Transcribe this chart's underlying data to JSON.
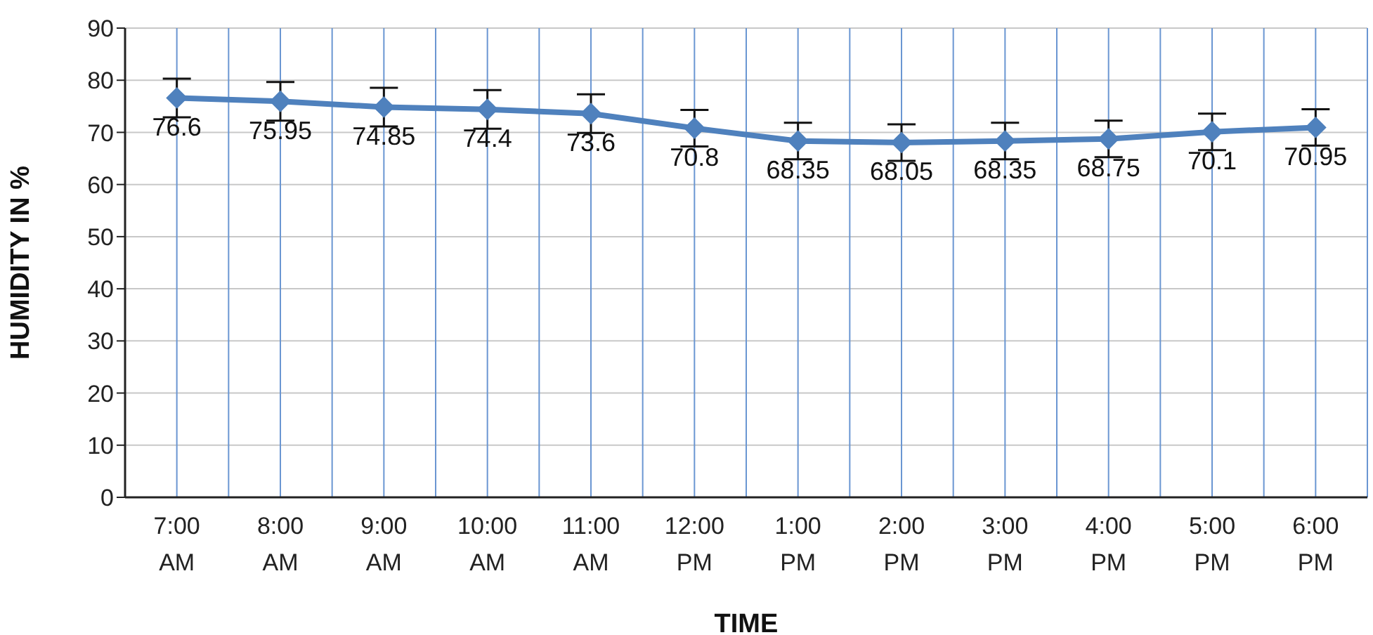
{
  "chart_data": {
    "type": "line",
    "xlabel": "TIME",
    "ylabel": "HUMIDITY IN %",
    "categories": [
      "7:00 AM",
      "8:00 AM",
      "9:00 AM",
      "10:00 AM",
      "11:00 AM",
      "12:00 PM",
      "1:00 PM",
      "2:00 PM",
      "3:00 PM",
      "4:00 PM",
      "5:00 PM",
      "6:00 PM"
    ],
    "series": [
      {
        "color": "#4f81bd",
        "values": [
          76.6,
          75.95,
          74.85,
          74.4,
          73.6,
          70.8,
          68.35,
          68.05,
          68.35,
          68.75,
          70.1,
          70.95
        ],
        "errors": [
          3.7,
          3.7,
          3.7,
          3.7,
          3.7,
          3.5,
          3.5,
          3.5,
          3.5,
          3.5,
          3.5,
          3.5
        ]
      }
    ],
    "ylim": [
      0,
      90
    ],
    "yticks": [
      0,
      10,
      20,
      30,
      40,
      50,
      60,
      70,
      80,
      90
    ],
    "grid": true,
    "data_labels": true,
    "marker": "diamond",
    "line_style": "solid"
  }
}
